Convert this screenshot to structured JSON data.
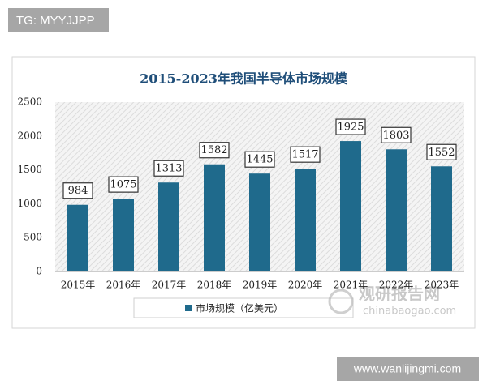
{
  "overlays": {
    "tag": "TG: MYYJJPP",
    "site": "www.wanlijingmi.com",
    "watermark_cn": "观研报告网",
    "watermark_en": "chinabaogao.com"
  },
  "chart_data": {
    "type": "bar",
    "title": "2015-2023年我国半导体市场规模",
    "categories": [
      "2015年",
      "2016年",
      "2017年",
      "2018年",
      "2019年",
      "2020年",
      "2021年",
      "2022年",
      "2023年"
    ],
    "series": [
      {
        "name": "市场规模（亿美元）",
        "color": "#1f6a8c",
        "values": [
          984,
          1075,
          1313,
          1582,
          1445,
          1517,
          1925,
          1803,
          1552
        ]
      }
    ],
    "ylim": [
      0,
      2500
    ],
    "yticks": [
      0,
      500,
      1000,
      1500,
      2000,
      2500
    ],
    "grid": false,
    "legend": "bottom",
    "data_labels": true
  }
}
